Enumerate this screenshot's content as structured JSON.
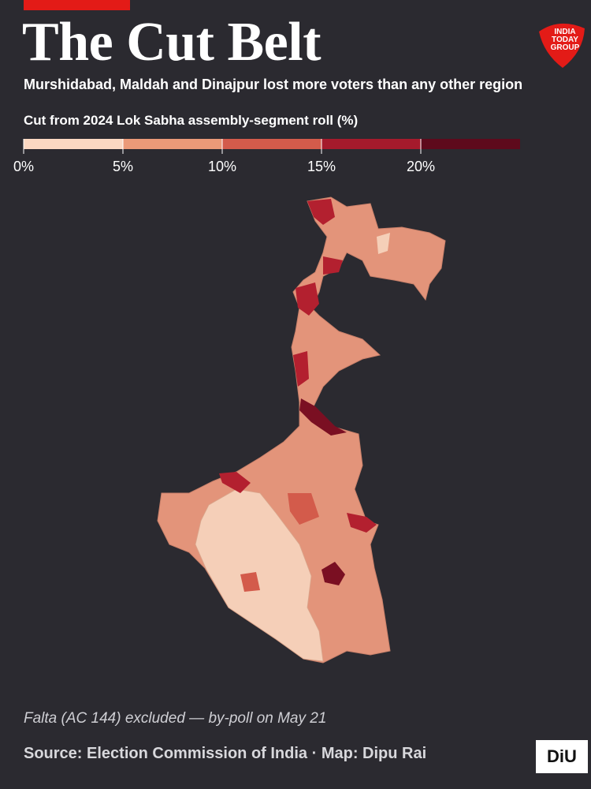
{
  "header": {
    "title": "The Cut Belt",
    "subtitle": "Murshidabad, Maldah and Dinajpur lost more voters than any other region",
    "logo": "INDIA TODAY GROUP"
  },
  "legend": {
    "title": "Cut from 2024 Lok Sabha assembly-segment roll (%)",
    "range": [
      0,
      25
    ],
    "ticks": [
      {
        "value": 0,
        "label": "0%"
      },
      {
        "value": 5,
        "label": "5%"
      },
      {
        "value": 10,
        "label": "10%"
      },
      {
        "value": 15,
        "label": "15%"
      },
      {
        "value": 20,
        "label": "20%"
      }
    ],
    "colors": [
      "#fbd8c2",
      "#eb9a78",
      "#d35b4b",
      "#a51a2c",
      "#5e0a1c"
    ]
  },
  "footer": {
    "note": "Falta (AC 144) excluded — by-poll on May 21",
    "source": "Source: Election Commission of India  ·  Map: Dipu Rai",
    "badge": "DiU"
  }
}
